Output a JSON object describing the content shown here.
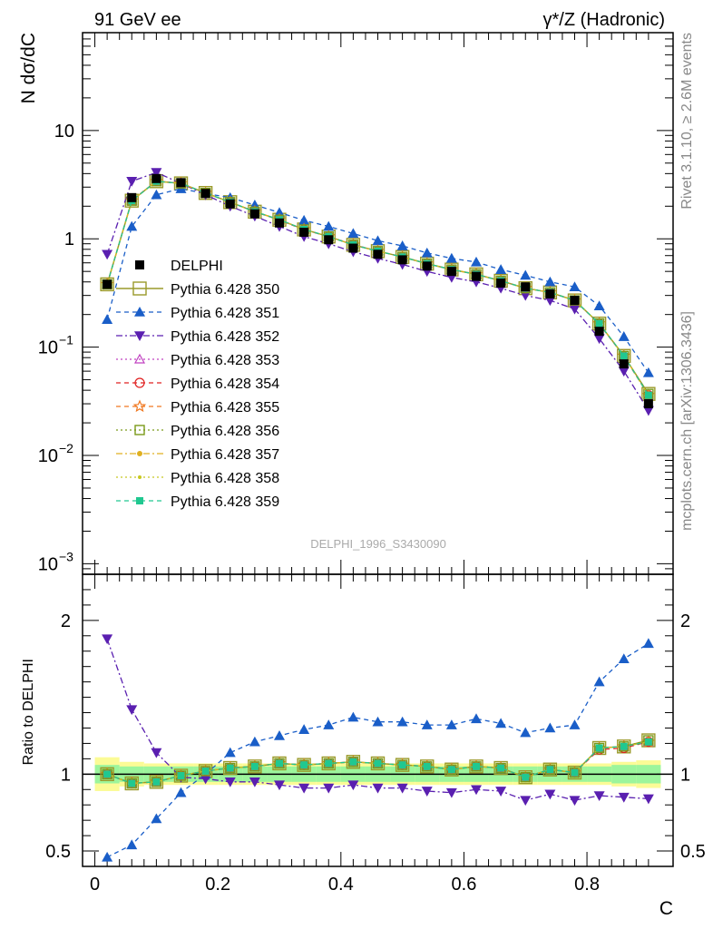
{
  "header": {
    "left": "91 GeV ee",
    "right": "γ*/Z (Hadronic)"
  },
  "side_labels": {
    "rivet": "Rivet 3.1.10, ≥ 2.6M events",
    "mcplots": "mcplots.cern.ch [arXiv:1306.3436]"
  },
  "watermark": "DELPHI_1996_S3430090",
  "chart_data": [
    {
      "type": "scatter",
      "panel": "main",
      "ylabel": "N dσ/dC",
      "xlabel": "C",
      "yscale": "log",
      "ylim": [
        0.0008,
        80
      ],
      "xlim": [
        -0.02,
        0.94
      ],
      "y_ticks": [
        {
          "value": 10,
          "label": "10"
        },
        {
          "value": 1,
          "label": "1"
        },
        {
          "value": 0.1,
          "label": "10",
          "exp": "−1"
        },
        {
          "value": 0.01,
          "label": "10",
          "exp": "−2"
        },
        {
          "value": 0.001,
          "label": "10",
          "exp": "−3"
        }
      ],
      "x": [
        0.02,
        0.06,
        0.1,
        0.14,
        0.18,
        0.22,
        0.26,
        0.3,
        0.34,
        0.38,
        0.42,
        0.46,
        0.5,
        0.54,
        0.58,
        0.62,
        0.66,
        0.7,
        0.74,
        0.78,
        0.82,
        0.86,
        0.9
      ],
      "data": {
        "name": "DELPHI",
        "values": [
          0.38,
          2.4,
          3.6,
          3.3,
          2.62,
          2.1,
          1.7,
          1.4,
          1.15,
          0.98,
          0.82,
          0.72,
          0.64,
          0.56,
          0.5,
          0.45,
          0.39,
          0.36,
          0.31,
          0.27,
          0.14,
          0.07,
          0.03
        ]
      },
      "series": [
        {
          "name": "Pythia 6.428 350",
          "color": "#9a9a2a",
          "values": [
            0.38,
            2.25,
            3.4,
            3.25,
            2.65,
            2.18,
            1.78,
            1.5,
            1.22,
            1.05,
            0.88,
            0.77,
            0.68,
            0.59,
            0.52,
            0.47,
            0.41,
            0.35,
            0.32,
            0.27,
            0.165,
            0.083,
            0.037
          ]
        },
        {
          "name": "Pythia 6.428 351",
          "color": "#1a5ec8",
          "values": [
            0.18,
            1.3,
            2.55,
            2.9,
            2.62,
            2.4,
            2.05,
            1.75,
            1.48,
            1.3,
            1.12,
            0.96,
            0.86,
            0.74,
            0.66,
            0.61,
            0.52,
            0.46,
            0.4,
            0.36,
            0.24,
            0.125,
            0.058
          ]
        },
        {
          "name": "Pythia 6.428 352",
          "color": "#5a1fb0",
          "values": [
            0.72,
            3.4,
            4.1,
            3.25,
            2.55,
            2.0,
            1.62,
            1.3,
            1.05,
            0.9,
            0.76,
            0.66,
            0.58,
            0.5,
            0.44,
            0.4,
            0.35,
            0.3,
            0.27,
            0.225,
            0.12,
            0.06,
            0.026
          ]
        },
        {
          "name": "Pythia 6.428 353",
          "color": "#c040c0",
          "values": [
            0.38,
            2.25,
            3.42,
            3.26,
            2.66,
            2.18,
            1.79,
            1.5,
            1.22,
            1.05,
            0.89,
            0.77,
            0.68,
            0.59,
            0.52,
            0.47,
            0.41,
            0.35,
            0.32,
            0.27,
            0.164,
            0.083,
            0.036
          ]
        },
        {
          "name": "Pythia 6.428 354",
          "color": "#e02020",
          "values": [
            0.38,
            2.26,
            3.41,
            3.24,
            2.65,
            2.17,
            1.78,
            1.49,
            1.21,
            1.05,
            0.88,
            0.77,
            0.68,
            0.59,
            0.52,
            0.47,
            0.41,
            0.35,
            0.32,
            0.27,
            0.164,
            0.082,
            0.036
          ]
        },
        {
          "name": "Pythia 6.428 355",
          "color": "#f07820",
          "values": [
            0.38,
            2.25,
            3.4,
            3.25,
            2.64,
            2.18,
            1.78,
            1.5,
            1.22,
            1.05,
            0.88,
            0.77,
            0.68,
            0.59,
            0.52,
            0.47,
            0.41,
            0.35,
            0.32,
            0.27,
            0.165,
            0.083,
            0.036
          ]
        },
        {
          "name": "Pythia 6.428 356",
          "color": "#7a9a1a",
          "values": [
            0.38,
            2.25,
            3.4,
            3.25,
            2.65,
            2.18,
            1.78,
            1.5,
            1.22,
            1.05,
            0.88,
            0.77,
            0.68,
            0.59,
            0.52,
            0.47,
            0.41,
            0.35,
            0.32,
            0.27,
            0.165,
            0.083,
            0.037
          ]
        },
        {
          "name": "Pythia 6.428 357",
          "color": "#e0b020",
          "values": [
            0.38,
            2.25,
            3.4,
            3.25,
            2.65,
            2.18,
            1.78,
            1.5,
            1.22,
            1.05,
            0.88,
            0.77,
            0.68,
            0.59,
            0.52,
            0.47,
            0.41,
            0.35,
            0.32,
            0.27,
            0.165,
            0.083,
            0.036
          ]
        },
        {
          "name": "Pythia 6.428 358",
          "color": "#c8c820",
          "values": [
            0.38,
            2.25,
            3.4,
            3.25,
            2.65,
            2.18,
            1.78,
            1.5,
            1.22,
            1.05,
            0.88,
            0.77,
            0.68,
            0.59,
            0.52,
            0.47,
            0.41,
            0.35,
            0.32,
            0.27,
            0.165,
            0.083,
            0.036
          ]
        },
        {
          "name": "Pythia 6.428 359",
          "color": "#20c890",
          "values": [
            0.38,
            2.25,
            3.4,
            3.25,
            2.65,
            2.18,
            1.78,
            1.5,
            1.22,
            1.05,
            0.88,
            0.77,
            0.68,
            0.59,
            0.52,
            0.47,
            0.41,
            0.35,
            0.32,
            0.27,
            0.165,
            0.083,
            0.036
          ]
        }
      ]
    },
    {
      "type": "scatter",
      "panel": "ratio",
      "ylabel": "Ratio to DELPHI",
      "xlabel": "C",
      "ylim": [
        0.4,
        2.3
      ],
      "xlim": [
        -0.02,
        0.94
      ],
      "x_ticks": [
        0,
        0.2,
        0.4,
        0.6,
        0.8
      ],
      "y_ticks": [
        0.5,
        1,
        2
      ],
      "band_inner": [
        0.06,
        0.05,
        0.05,
        0.05,
        0.05,
        0.05,
        0.05,
        0.05,
        0.05,
        0.05,
        0.05,
        0.05,
        0.05,
        0.05,
        0.05,
        0.05,
        0.05,
        0.05,
        0.05,
        0.05,
        0.05,
        0.06,
        0.06
      ],
      "band_outer": [
        0.11,
        0.08,
        0.07,
        0.07,
        0.07,
        0.07,
        0.07,
        0.07,
        0.07,
        0.07,
        0.07,
        0.07,
        0.07,
        0.07,
        0.07,
        0.07,
        0.07,
        0.07,
        0.07,
        0.07,
        0.07,
        0.08,
        0.09
      ],
      "ratios": {
        "Pythia 6.428 350": [
          1.0,
          0.94,
          0.95,
          0.99,
          1.02,
          1.04,
          1.05,
          1.07,
          1.06,
          1.07,
          1.08,
          1.07,
          1.06,
          1.05,
          1.03,
          1.05,
          1.04,
          0.98,
          1.03,
          1.01,
          1.17,
          1.18,
          1.22
        ],
        "Pythia 6.428 351": [
          0.46,
          0.54,
          0.71,
          0.88,
          1.0,
          1.14,
          1.21,
          1.25,
          1.29,
          1.32,
          1.37,
          1.34,
          1.34,
          1.32,
          1.32,
          1.36,
          1.33,
          1.27,
          1.3,
          1.32,
          1.6,
          1.75,
          1.85
        ],
        "Pythia 6.428 352": [
          1.88,
          1.42,
          1.14,
          0.98,
          0.97,
          0.95,
          0.95,
          0.93,
          0.91,
          0.91,
          0.93,
          0.91,
          0.91,
          0.89,
          0.88,
          0.9,
          0.89,
          0.83,
          0.87,
          0.83,
          0.86,
          0.85,
          0.84
        ],
        "Pythia 6.428 353": [
          1.0,
          0.94,
          0.95,
          0.99,
          1.02,
          1.04,
          1.05,
          1.07,
          1.06,
          1.07,
          1.08,
          1.07,
          1.06,
          1.05,
          1.03,
          1.05,
          1.04,
          0.98,
          1.03,
          1.01,
          1.17,
          1.18,
          1.21
        ],
        "Pythia 6.428 354": [
          1.0,
          0.94,
          0.95,
          0.99,
          1.02,
          1.04,
          1.05,
          1.07,
          1.06,
          1.07,
          1.08,
          1.07,
          1.06,
          1.05,
          1.03,
          1.05,
          1.04,
          0.98,
          1.03,
          1.01,
          1.16,
          1.17,
          1.21
        ],
        "Pythia 6.428 355": [
          1.0,
          0.94,
          0.95,
          0.99,
          1.02,
          1.04,
          1.05,
          1.07,
          1.06,
          1.07,
          1.08,
          1.07,
          1.06,
          1.05,
          1.03,
          1.05,
          1.04,
          0.98,
          1.03,
          1.01,
          1.17,
          1.18,
          1.21
        ],
        "Pythia 6.428 356": [
          1.0,
          0.94,
          0.95,
          0.99,
          1.02,
          1.04,
          1.05,
          1.07,
          1.06,
          1.07,
          1.08,
          1.07,
          1.06,
          1.05,
          1.03,
          1.05,
          1.04,
          0.98,
          1.03,
          1.01,
          1.17,
          1.18,
          1.22
        ],
        "Pythia 6.428 357": [
          1.0,
          0.94,
          0.95,
          0.99,
          1.02,
          1.04,
          1.05,
          1.07,
          1.06,
          1.07,
          1.08,
          1.07,
          1.06,
          1.05,
          1.03,
          1.05,
          1.04,
          0.98,
          1.03,
          1.01,
          1.17,
          1.18,
          1.21
        ],
        "Pythia 6.428 358": [
          1.0,
          0.94,
          0.95,
          0.99,
          1.02,
          1.04,
          1.05,
          1.07,
          1.06,
          1.07,
          1.08,
          1.07,
          1.06,
          1.05,
          1.03,
          1.05,
          1.04,
          0.98,
          1.03,
          1.01,
          1.17,
          1.18,
          1.21
        ],
        "Pythia 6.428 359": [
          1.0,
          0.94,
          0.95,
          0.99,
          1.02,
          1.04,
          1.05,
          1.07,
          1.06,
          1.07,
          1.08,
          1.07,
          1.06,
          1.05,
          1.03,
          1.05,
          1.04,
          0.98,
          1.03,
          1.01,
          1.17,
          1.18,
          1.21
        ]
      }
    }
  ]
}
